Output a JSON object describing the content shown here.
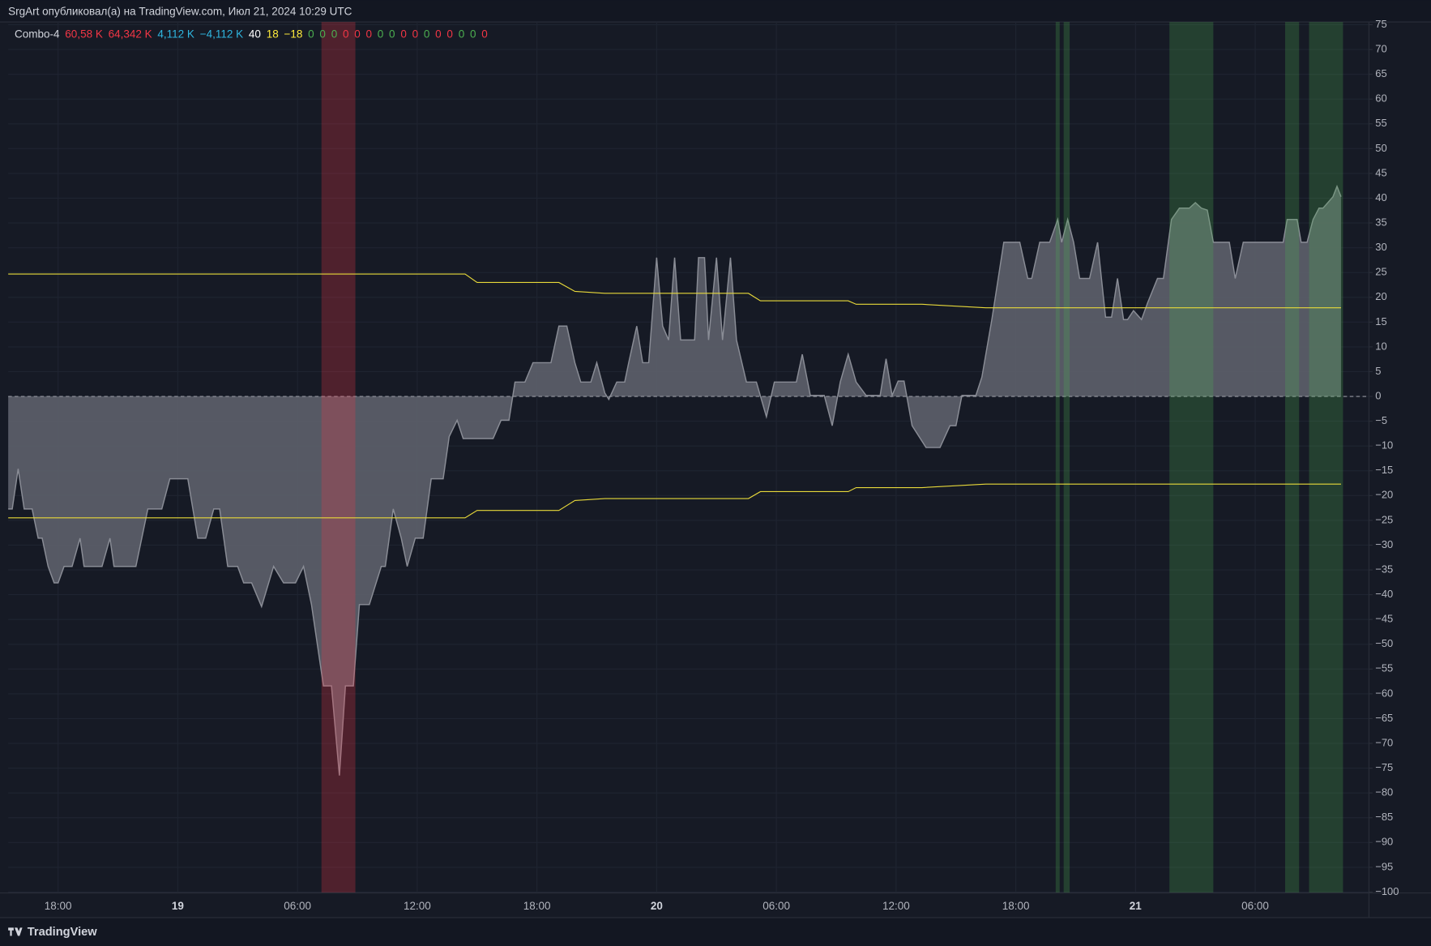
{
  "header": {
    "title": "SrgArt опубликовал(а) на TradingView.com, Июл 21, 2024 10:29 UTC"
  },
  "footer": {
    "brand": "TradingView"
  },
  "legend": {
    "name": "Combo-4",
    "items": [
      {
        "text": "60,58 K",
        "color": "#f23645"
      },
      {
        "text": "64,342 K",
        "color": "#f23645"
      },
      {
        "text": "4,112 K",
        "color": "#2fb6e0"
      },
      {
        "text": "−4,112 K",
        "color": "#2fb6e0"
      },
      {
        "text": "40",
        "color": "#ffffff"
      },
      {
        "text": "18",
        "color": "#ffeb3b"
      },
      {
        "text": "−18",
        "color": "#ffeb3b"
      },
      {
        "text": "0",
        "color": "#4caf50"
      },
      {
        "text": "0",
        "color": "#4caf50"
      },
      {
        "text": "0",
        "color": "#4caf50"
      },
      {
        "text": "0",
        "color": "#f23645"
      },
      {
        "text": "0",
        "color": "#f23645"
      },
      {
        "text": "0",
        "color": "#f23645"
      },
      {
        "text": "0",
        "color": "#4caf50"
      },
      {
        "text": "0",
        "color": "#4caf50"
      },
      {
        "text": "0",
        "color": "#f23645"
      },
      {
        "text": "0",
        "color": "#f23645"
      },
      {
        "text": "0",
        "color": "#4caf50"
      },
      {
        "text": "0",
        "color": "#f23645"
      },
      {
        "text": "0",
        "color": "#f23645"
      },
      {
        "text": "0",
        "color": "#4caf50"
      },
      {
        "text": "0",
        "color": "#4caf50"
      },
      {
        "text": "0",
        "color": "#f23645"
      }
    ]
  },
  "chart_data": {
    "type": "area",
    "xlim": [
      -2.5,
      65.7
    ],
    "ylim": [
      -100,
      75
    ],
    "grid": true,
    "xticks": [
      {
        "value": 0,
        "label": "18:00"
      },
      {
        "value": 6,
        "label": "19"
      },
      {
        "value": 12,
        "label": "06:00"
      },
      {
        "value": 18,
        "label": "12:00"
      },
      {
        "value": 24,
        "label": "18:00"
      },
      {
        "value": 30,
        "label": "20"
      },
      {
        "value": 36,
        "label": "06:00"
      },
      {
        "value": 42,
        "label": "12:00"
      },
      {
        "value": 48,
        "label": "18:00"
      },
      {
        "value": 54,
        "label": "21"
      },
      {
        "value": 60,
        "label": "06:00"
      }
    ],
    "yticks": [
      75,
      70,
      65,
      60,
      55,
      50,
      45,
      40,
      35,
      30,
      25,
      20,
      15,
      10,
      5,
      0,
      {
        "value": -5,
        "label": "−5"
      },
      {
        "value": -10,
        "label": "−10"
      },
      {
        "value": -15,
        "label": "−15"
      },
      {
        "value": -20,
        "label": "−20"
      },
      {
        "value": -25,
        "label": "−25"
      },
      {
        "value": -30,
        "label": "−30"
      },
      {
        "value": -35,
        "label": "−35"
      },
      {
        "value": -40,
        "label": "−40"
      },
      {
        "value": -45,
        "label": "−45"
      },
      {
        "value": -50,
        "label": "−50"
      },
      {
        "value": -55,
        "label": "−55"
      },
      {
        "value": -60,
        "label": "−60"
      },
      {
        "value": -65,
        "label": "−65"
      },
      {
        "value": -70,
        "label": "−70"
      },
      {
        "value": -75,
        "label": "−75"
      },
      {
        "value": -80,
        "label": "−80"
      },
      {
        "value": -85,
        "label": "−85"
      },
      {
        "value": -90,
        "label": "−90"
      },
      {
        "value": -95,
        "label": "−95"
      },
      {
        "value": -100,
        "label": "−100"
      }
    ],
    "baseline": 0,
    "bands": [
      {
        "x": [
          13.2,
          14.9
        ],
        "color": "#f23645"
      },
      {
        "x": [
          50.0,
          50.2
        ],
        "color": "#4caf50"
      },
      {
        "x": [
          50.4,
          50.7
        ],
        "color": "#4caf50"
      },
      {
        "x": [
          55.7,
          57.9
        ],
        "color": "#4caf50"
      },
      {
        "x": [
          61.5,
          62.2
        ],
        "color": "#4caf50"
      },
      {
        "x": [
          62.7,
          64.4
        ],
        "color": "#4caf50"
      }
    ],
    "series": [
      {
        "type": "area",
        "color": "#8a8d96",
        "x": [
          -2.5,
          -2.3,
          -2.0,
          -1.7,
          -1.3,
          -1.0,
          -0.8,
          -0.5,
          -0.2,
          0,
          0.3,
          0.7,
          1.1,
          1.3,
          2.2,
          2.6,
          2.8,
          3.9,
          4.5,
          5.2,
          5.6,
          6.5,
          7.0,
          7.4,
          7.8,
          8.1,
          8.5,
          9.0,
          9.3,
          9.7,
          10.2,
          10.8,
          11.3,
          11.9,
          12.3,
          12.7,
          13.3,
          13.7,
          14.1,
          14.4,
          14.8,
          15.1,
          15.6,
          16.2,
          16.4,
          16.8,
          17.2,
          17.5,
          17.9,
          18.3,
          18.7,
          19.3,
          19.6,
          20.0,
          20.3,
          21.8,
          22.2,
          22.6,
          22.9,
          23.4,
          23.8,
          24.7,
          25.1,
          25.5,
          25.9,
          26.2,
          26.7,
          27.0,
          27.4,
          27.6,
          28.0,
          28.4,
          28.6,
          29.0,
          29.3,
          29.6,
          30.0,
          30.3,
          30.6,
          30.9,
          31.2,
          31.9,
          32.1,
          32.4,
          32.6,
          33.0,
          33.3,
          33.7,
          34.0,
          34.5,
          35.0,
          35.5,
          35.9,
          37.0,
          37.3,
          37.7,
          38.4,
          38.8,
          39.2,
          39.6,
          40.0,
          40.5,
          41.2,
          41.5,
          41.8,
          42.1,
          42.4,
          42.8,
          43.5,
          44.2,
          44.7,
          45.0,
          45.3,
          46.0,
          46.3,
          46.8,
          47.4,
          48.2,
          48.6,
          48.8,
          49.2,
          49.7,
          50.1,
          50.3,
          50.6,
          50.9,
          51.2,
          51.7,
          52.1,
          52.5,
          52.8,
          53.1,
          53.4,
          53.6,
          53.9,
          54.3,
          54.6,
          55.1,
          55.4,
          55.8,
          56.2,
          56.7,
          57.0,
          57.3,
          57.6,
          57.9,
          58.7,
          59.0,
          59.4,
          61.4,
          61.6,
          62.1,
          62.3,
          62.6,
          62.9,
          63.2,
          63.4,
          63.9,
          64.1,
          64.3
        ],
        "values": [
          -22.7,
          -22.7,
          -14.6,
          -22.7,
          -22.7,
          -28.6,
          -28.6,
          -34.3,
          -37.6,
          -37.6,
          -34.3,
          -34.3,
          -28.6,
          -34.3,
          -34.3,
          -28.6,
          -34.3,
          -34.3,
          -22.7,
          -22.7,
          -16.6,
          -16.6,
          -28.6,
          -28.6,
          -22.7,
          -22.7,
          -34.3,
          -34.3,
          -37.6,
          -37.6,
          -42.4,
          -34.3,
          -37.6,
          -37.6,
          -34.3,
          -42.0,
          -58.4,
          -58.4,
          -76.5,
          -58.4,
          -58.4,
          -42.0,
          -42.0,
          -34.3,
          -34.3,
          -22.7,
          -28.6,
          -34.3,
          -28.6,
          -28.6,
          -16.6,
          -16.6,
          -8.1,
          -4.8,
          -8.5,
          -8.5,
          -4.8,
          -4.8,
          2.9,
          2.9,
          6.8,
          6.8,
          14.2,
          14.2,
          6.8,
          2.9,
          2.9,
          6.8,
          0.7,
          -0.6,
          2.9,
          2.9,
          6.8,
          14.2,
          6.8,
          6.8,
          28.0,
          14.2,
          11.4,
          28.0,
          11.4,
          11.4,
          28.0,
          28.0,
          11.4,
          28.0,
          11.4,
          28.0,
          11.4,
          2.9,
          2.9,
          -4.1,
          2.9,
          2.9,
          8.5,
          0.2,
          0.2,
          -5.9,
          2.9,
          8.5,
          2.9,
          0.2,
          0.2,
          7.6,
          0.2,
          3.1,
          3.1,
          -5.9,
          -10.3,
          -10.3,
          -5.9,
          -5.9,
          0.2,
          0.2,
          3.9,
          15.5,
          31.1,
          31.1,
          23.8,
          23.8,
          31.1,
          31.1,
          35.7,
          31.1,
          35.7,
          31.1,
          23.8,
          23.8,
          31.1,
          16.0,
          16.0,
          23.8,
          15.5,
          15.5,
          17.3,
          15.5,
          18.8,
          23.8,
          23.8,
          35.7,
          38.0,
          38.0,
          39.1,
          38.0,
          37.6,
          31.1,
          31.1,
          23.8,
          31.1,
          31.1,
          35.7,
          35.7,
          31.1,
          31.1,
          35.7,
          38.0,
          38.0,
          40.3,
          42.4,
          40.3
        ]
      },
      {
        "type": "line",
        "color": "#e8d93a",
        "x": [
          -2.5,
          20.4,
          21.0,
          25.1,
          25.9,
          27.4,
          34.6,
          35.2,
          39.6,
          40.0,
          43.3,
          46.5,
          64.3
        ],
        "values": [
          24.7,
          24.7,
          23.0,
          23.0,
          21.2,
          20.8,
          20.8,
          19.3,
          19.3,
          18.6,
          18.6,
          17.9,
          17.9
        ]
      },
      {
        "type": "line",
        "color": "#e8d93a",
        "x": [
          -2.5,
          20.4,
          21.0,
          25.1,
          25.9,
          27.4,
          34.6,
          35.2,
          39.6,
          40.0,
          43.3,
          46.5,
          64.3
        ],
        "values": [
          -24.5,
          -24.5,
          -23.0,
          -23.0,
          -21.0,
          -20.6,
          -20.6,
          -19.2,
          -19.2,
          -18.4,
          -18.4,
          -17.7,
          -17.7
        ]
      }
    ]
  }
}
